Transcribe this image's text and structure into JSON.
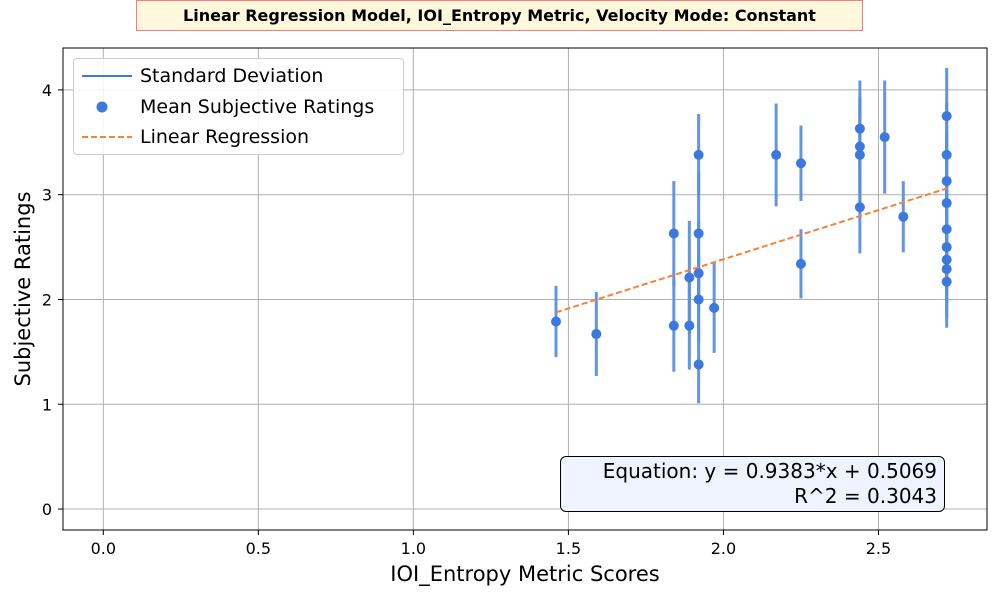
{
  "chart_data": {
    "type": "scatter",
    "title": "Linear Regression Model, IOI_Entropy Metric, Velocity Mode: Constant",
    "xlabel": "IOI_Entropy Metric Scores",
    "ylabel": "Subjective Ratings",
    "xlim": [
      -0.13,
      2.85
    ],
    "ylim": [
      -0.2,
      4.4
    ],
    "xticks": [
      "0.0",
      "0.5",
      "1.0",
      "1.5",
      "2.0",
      "2.5"
    ],
    "xtick_values": [
      0.0,
      0.5,
      1.0,
      1.5,
      2.0,
      2.5
    ],
    "yticks": [
      "0",
      "1",
      "2",
      "3",
      "4"
    ],
    "ytick_values": [
      0,
      1,
      2,
      3,
      4
    ],
    "grid": true,
    "legend_position": "top-left",
    "legend": [
      {
        "label": "Standard Deviation",
        "kind": "line"
      },
      {
        "label": "Mean Subjective Ratings",
        "kind": "marker"
      },
      {
        "label": "Linear Regression",
        "kind": "dashed"
      }
    ],
    "colors": {
      "points": "#3b78e0",
      "errorbars": "#5a8fe0",
      "regression": "#f5813a",
      "legend_line": "#3b78e0"
    },
    "series": [
      {
        "name": "Mean Subjective Ratings",
        "points": [
          {
            "x": 1.46,
            "y": 1.79,
            "sd": 0.34
          },
          {
            "x": 1.59,
            "y": 1.67,
            "sd": 0.4
          },
          {
            "x": 1.84,
            "y": 2.63,
            "sd": 0.5
          },
          {
            "x": 1.84,
            "y": 1.75,
            "sd": 0.44
          },
          {
            "x": 1.89,
            "y": 2.21,
            "sd": 0.54
          },
          {
            "x": 1.89,
            "y": 1.75,
            "sd": 0.42
          },
          {
            "x": 1.92,
            "y": 3.38,
            "sd": 0.39
          },
          {
            "x": 1.92,
            "y": 2.63,
            "sd": 0.58
          },
          {
            "x": 1.92,
            "y": 2.25,
            "sd": 0.5
          },
          {
            "x": 1.92,
            "y": 2.0,
            "sd": 0.41
          },
          {
            "x": 1.92,
            "y": 1.38,
            "sd": 0.37
          },
          {
            "x": 1.97,
            "y": 1.92,
            "sd": 0.43
          },
          {
            "x": 2.17,
            "y": 3.38,
            "sd": 0.49
          },
          {
            "x": 2.25,
            "y": 3.3,
            "sd": 0.36
          },
          {
            "x": 2.25,
            "y": 2.34,
            "sd": 0.33
          },
          {
            "x": 2.44,
            "y": 3.63,
            "sd": 0.46
          },
          {
            "x": 2.44,
            "y": 3.46,
            "sd": 0.45
          },
          {
            "x": 2.44,
            "y": 3.38,
            "sd": 0.55
          },
          {
            "x": 2.44,
            "y": 2.88,
            "sd": 0.44
          },
          {
            "x": 2.52,
            "y": 3.55,
            "sd": 0.54
          },
          {
            "x": 2.58,
            "y": 2.79,
            "sd": 0.34
          },
          {
            "x": 2.72,
            "y": 3.75,
            "sd": 0.46
          },
          {
            "x": 2.72,
            "y": 3.38,
            "sd": 0.5
          },
          {
            "x": 2.72,
            "y": 3.13,
            "sd": 0.46
          },
          {
            "x": 2.72,
            "y": 2.92,
            "sd": 0.45
          },
          {
            "x": 2.72,
            "y": 2.67,
            "sd": 0.44
          },
          {
            "x": 2.72,
            "y": 2.5,
            "sd": 0.42
          },
          {
            "x": 2.72,
            "y": 2.38,
            "sd": 0.43
          },
          {
            "x": 2.72,
            "y": 2.29,
            "sd": 0.47
          },
          {
            "x": 2.72,
            "y": 2.17,
            "sd": 0.44
          }
        ]
      }
    ],
    "regression": {
      "slope": 0.9383,
      "intercept": 0.5069,
      "x_range": [
        1.46,
        2.72
      ]
    },
    "annotation": {
      "line1": "Equation: y = 0.9383*x + 0.5069",
      "line2": "R^2 = 0.3043"
    }
  }
}
